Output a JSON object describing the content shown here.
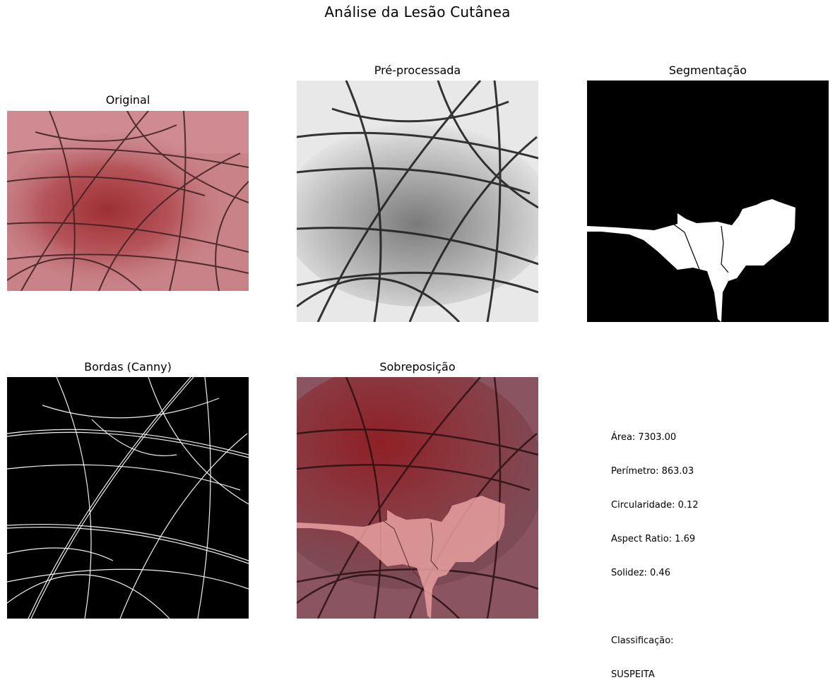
{
  "figure": {
    "title": "Análise da Lesão Cutânea"
  },
  "panels": {
    "original": {
      "title": "Original"
    },
    "preprocessed": {
      "title": "Pré-processada"
    },
    "segmentation": {
      "title": "Segmentação"
    },
    "edges": {
      "title": "Bordas (Canny)"
    },
    "overlay": {
      "title": "Sobreposição"
    }
  },
  "metrics": {
    "area": "Área: 7303.00",
    "perimeter": "Perímetro: 863.03",
    "circularity": "Circularidade: 0.12",
    "aspect_ratio": "Aspect Ratio: 1.69",
    "solidity": "Solidez: 0.46",
    "classification_label": "Classificação:",
    "classification_value": "SUSPEITA"
  },
  "colors": {
    "skin": "#c98388",
    "lesion": "#9a2a30",
    "hair": "#3a1e1e",
    "mask": "#ffffff",
    "background": "#000000"
  }
}
